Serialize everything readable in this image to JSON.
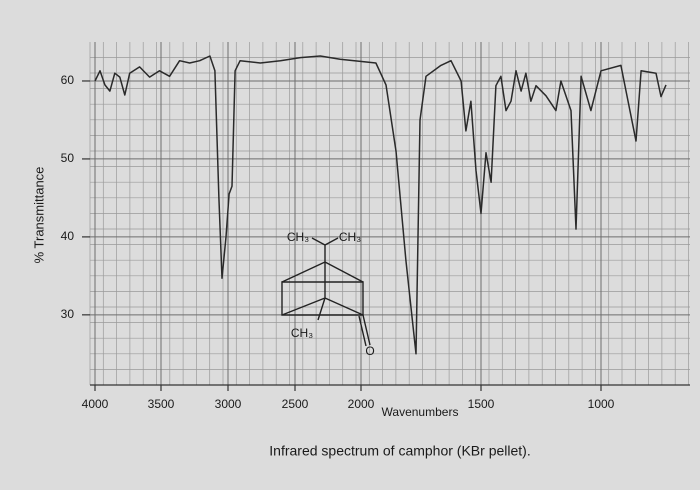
{
  "chart_data": {
    "type": "line",
    "title": "Infrared spectrum of camphor (KBr pellet).",
    "x_label": "Wavenumbers",
    "y_label": "% Transmittance",
    "annotations": [
      "CH₃",
      "CH₃",
      "CH₃",
      "O"
    ],
    "x": [
      4000,
      3962,
      3925,
      3887,
      3850,
      3812,
      3774,
      3737,
      3662,
      3586,
      3511,
      3436,
      3361,
      3286,
      3211,
      3135,
      3098,
      3068,
      3045,
      3015,
      2992,
      2970,
      2947,
      2910,
      2759,
      2609,
      2459,
      2308,
      2158,
      1938,
      1896,
      1854,
      1813,
      1771,
      1754,
      1729,
      1667,
      1625,
      1583,
      1563,
      1542,
      1521,
      1500,
      1479,
      1458,
      1438,
      1417,
      1396,
      1375,
      1354,
      1333,
      1313,
      1292,
      1271,
      1229,
      1188,
      1167,
      1125,
      1104,
      1083,
      1042,
      1000,
      917,
      854,
      833,
      771,
      750,
      729
    ],
    "series": [
      {
        "color": "#2a2a2a",
        "values": [
          60,
          61.3,
          59.5,
          58.7,
          61.0,
          60.5,
          58.2,
          61.0,
          61.8,
          60.5,
          61.3,
          60.6,
          62.6,
          62.3,
          62.6,
          63.2,
          61.3,
          45,
          34.7,
          40.0,
          45.5,
          46.5,
          61.3,
          62.6,
          62.3,
          62.6,
          63.0,
          63.2,
          62.8,
          62.3,
          59.5,
          51.0,
          37,
          25,
          55,
          60.6,
          62.0,
          62.6,
          60.0,
          53.6,
          57.4,
          48.5,
          43.0,
          50.8,
          47,
          59.4,
          60.6,
          56.2,
          57.4,
          61.3,
          58.7,
          61.0,
          57.4,
          59.4,
          58.1,
          56.2,
          60,
          56.2,
          41,
          60.6,
          56.2,
          61.3,
          62,
          52.3,
          61.3,
          61,
          58,
          59.5
        ]
      }
    ],
    "xlim": [
      4000,
      650
    ],
    "xticks": [
      4000,
      3500,
      3000,
      2500,
      2000,
      1500,
      1000
    ],
    "ylim": [
      21,
      65
    ],
    "yticks": [
      30,
      40,
      50,
      60
    ],
    "grid": true
  }
}
